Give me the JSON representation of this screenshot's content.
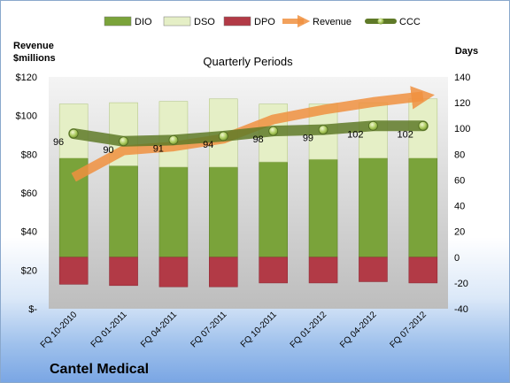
{
  "chart_data": {
    "type": "bar",
    "title": "Quarterly Periods",
    "company": "Cantel Medical",
    "left_axis": {
      "label_line1": "Revenue",
      "label_line2": "$millions",
      "range": [
        0,
        120
      ],
      "ticks": [
        "$-",
        "$20",
        "$40",
        "$60",
        "$80",
        "$100",
        "$120"
      ]
    },
    "right_axis": {
      "label": "Days",
      "range": [
        -40,
        140
      ],
      "ticks": [
        "-40",
        "-20",
        "0",
        "20",
        "40",
        "60",
        "80",
        "100",
        "120",
        "140"
      ]
    },
    "categories": [
      "FQ 10-2010",
      "FQ 01-2011",
      "FQ 04-2011",
      "FQ 07-2011",
      "FQ 10-2011",
      "FQ 01-2012",
      "FQ 04-2012",
      "FQ 07-2012"
    ],
    "legend": [
      "DIO",
      "DSO",
      "DPO",
      "Revenue",
      "CCC"
    ],
    "series": [
      {
        "name": "DIO",
        "axis": "right",
        "values": [
          77,
          71,
          70,
          70,
          74,
          76,
          77,
          77
        ],
        "color": "#7aa33a"
      },
      {
        "name": "DSO",
        "axis": "right",
        "values": [
          42,
          49,
          51,
          53,
          45,
          43,
          43,
          46
        ],
        "color": "#e5efc6"
      },
      {
        "name": "DPO",
        "axis": "right",
        "values": [
          -21,
          -22,
          -23,
          -23,
          -20,
          -20,
          -19,
          -20
        ],
        "color": "#b23a46"
      },
      {
        "name": "Revenue",
        "axis": "left",
        "values": [
          68,
          82,
          84,
          88,
          98,
          103,
          107,
          110
        ],
        "color": "#f0913f"
      },
      {
        "name": "CCC",
        "axis": "right",
        "values": [
          96,
          90,
          91,
          94,
          98,
          99,
          102,
          102
        ],
        "labels": [
          "96",
          "90",
          "91",
          "94",
          "98",
          "99",
          "102",
          "102"
        ],
        "color": "#6e8a2e"
      }
    ]
  }
}
